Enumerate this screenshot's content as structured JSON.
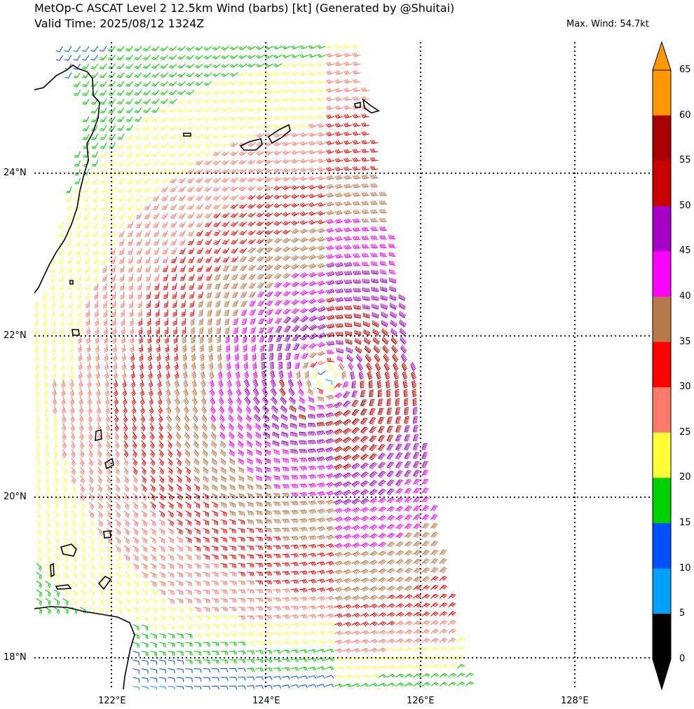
{
  "title": {
    "line1": "MetOp-C ASCAT Level 2 12.5km Wind (barbs) [kt] (Generated by @Shuitai)",
    "line2": "Valid Time: 2025/08/12 1324Z",
    "max_wind": "Max. Wind: 54.7kt"
  },
  "axes": {
    "lat_labels": [
      "24°N",
      "22°N",
      "20°N",
      "18°N"
    ],
    "lon_labels": [
      "122°E",
      "124°E",
      "126°E",
      "128°E"
    ]
  },
  "colorbar": {
    "ticks": [
      "0",
      "5",
      "10",
      "15",
      "20",
      "25",
      "30",
      "35",
      "40",
      "45",
      "50",
      "55",
      "60",
      "65"
    ],
    "bins": [
      {
        "range": [
          0,
          5
        ],
        "color": "#000000"
      },
      {
        "range": [
          5,
          10
        ],
        "color": "#00a0ff"
      },
      {
        "range": [
          10,
          15
        ],
        "color": "#0050ff"
      },
      {
        "range": [
          15,
          20
        ],
        "color": "#00d000"
      },
      {
        "range": [
          20,
          25
        ],
        "color": "#ffff33"
      },
      {
        "range": [
          25,
          30
        ],
        "color": "#ff7a6a"
      },
      {
        "range": [
          30,
          35
        ],
        "color": "#ff0000"
      },
      {
        "range": [
          35,
          40
        ],
        "color": "#b8784a"
      },
      {
        "range": [
          40,
          45
        ],
        "color": "#ff00ff"
      },
      {
        "range": [
          45,
          50
        ],
        "color": "#a600c8"
      },
      {
        "range": [
          50,
          55
        ],
        "color": "#cc0000"
      },
      {
        "range": [
          55,
          60
        ],
        "color": "#a80000"
      },
      {
        "range": [
          60,
          65
        ],
        "color": "#ff9800"
      }
    ],
    "extend": "both"
  },
  "map": {
    "lon_range": [
      121.0,
      129.0
    ],
    "lat_range": [
      17.5,
      25.6
    ],
    "gridlines": "dotted",
    "storm_center": {
      "lon": 124.8,
      "lat": 21.5
    },
    "max_wind_kt": 54.7
  }
}
